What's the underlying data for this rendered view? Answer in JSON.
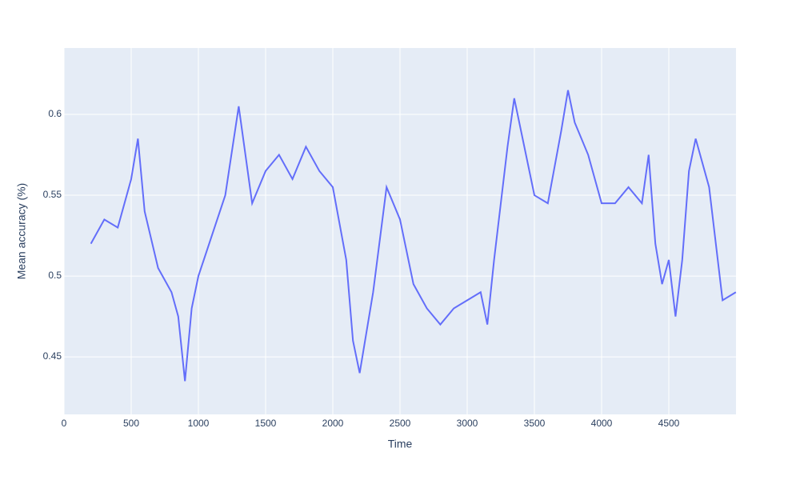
{
  "chart_data": {
    "type": "line",
    "x_label": "Time",
    "y_label": "Mean accuracy (%)",
    "x": [
      200,
      300,
      400,
      500,
      550,
      600,
      700,
      800,
      850,
      900,
      950,
      1000,
      1100,
      1200,
      1300,
      1400,
      1500,
      1600,
      1700,
      1800,
      1900,
      2000,
      2100,
      2150,
      2200,
      2300,
      2400,
      2500,
      2600,
      2700,
      2800,
      2900,
      3000,
      3100,
      3150,
      3200,
      3300,
      3350,
      3400,
      3500,
      3600,
      3700,
      3750,
      3800,
      3900,
      4000,
      4100,
      4200,
      4300,
      4350,
      4400,
      4450,
      4500,
      4550,
      4600,
      4650,
      4700,
      4800,
      4900,
      4999
    ],
    "series": [
      {
        "name": "Mean accuracy",
        "color": "#636efa",
        "values": [
          0.52,
          0.535,
          0.53,
          0.56,
          0.585,
          0.54,
          0.505,
          0.49,
          0.475,
          0.435,
          0.48,
          0.5,
          0.525,
          0.55,
          0.605,
          0.545,
          0.565,
          0.575,
          0.56,
          0.58,
          0.565,
          0.555,
          0.51,
          0.46,
          0.44,
          0.49,
          0.555,
          0.535,
          0.495,
          0.48,
          0.47,
          0.48,
          0.485,
          0.49,
          0.47,
          0.51,
          0.58,
          0.61,
          0.59,
          0.55,
          0.545,
          0.59,
          0.615,
          0.595,
          0.575,
          0.545,
          0.545,
          0.555,
          0.545,
          0.575,
          0.52,
          0.495,
          0.51,
          0.475,
          0.51,
          0.565,
          0.585,
          0.555,
          0.485,
          0.49
        ]
      }
    ],
    "xlim": [
      0,
      5000
    ],
    "ylim": [
      0.4144,
      0.6411
    ],
    "xticks": [
      0,
      500,
      1000,
      1500,
      2000,
      2500,
      3000,
      3500,
      4000,
      4500
    ],
    "yticks": [
      0.45,
      0.5,
      0.55,
      0.6
    ],
    "grid": true
  }
}
